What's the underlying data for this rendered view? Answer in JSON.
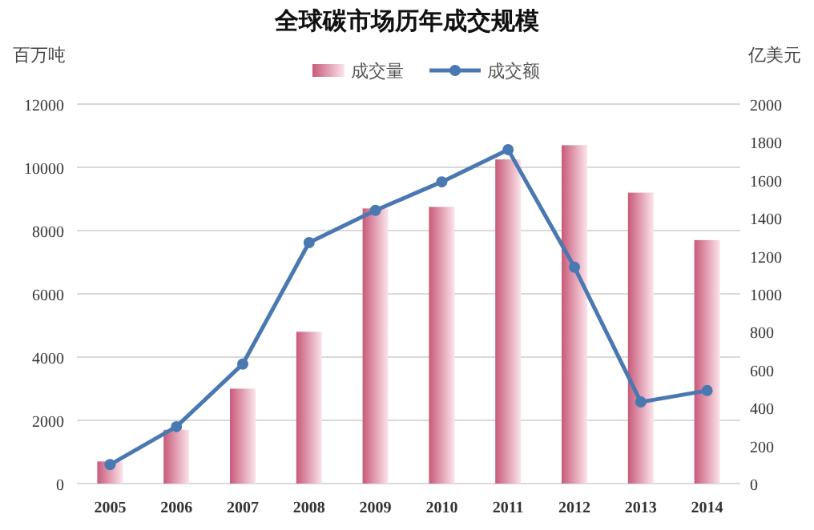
{
  "chart_data": {
    "type": "bar",
    "title": "全球碳市场历年成交规模",
    "ylabel": "百万吨",
    "y2label": "亿美元",
    "categories": [
      "2005",
      "2006",
      "2007",
      "2008",
      "2009",
      "2010",
      "2011",
      "2012",
      "2013",
      "2014"
    ],
    "series": [
      {
        "name": "成交量",
        "color": "#c85a7a",
        "values": [
          700,
          1700,
          3000,
          4800,
          8700,
          8750,
          10250,
          10700,
          9200,
          7700
        ]
      },
      {
        "name": "成交额",
        "type": "line",
        "axis": "y2",
        "color": "#4a78b0",
        "marker": "circle",
        "values": [
          100,
          300,
          630,
          1270,
          1440,
          1590,
          1760,
          1140,
          430,
          490
        ]
      }
    ],
    "ylim": [
      0,
      12000
    ],
    "yticks": [
      0,
      2000,
      4000,
      6000,
      8000,
      10000,
      12000
    ],
    "y2lim": [
      0,
      2000
    ],
    "y2ticks": [
      0,
      200,
      400,
      600,
      800,
      1000,
      1200,
      1400,
      1600,
      1800,
      2000
    ],
    "grid": "y",
    "legend": "top"
  }
}
